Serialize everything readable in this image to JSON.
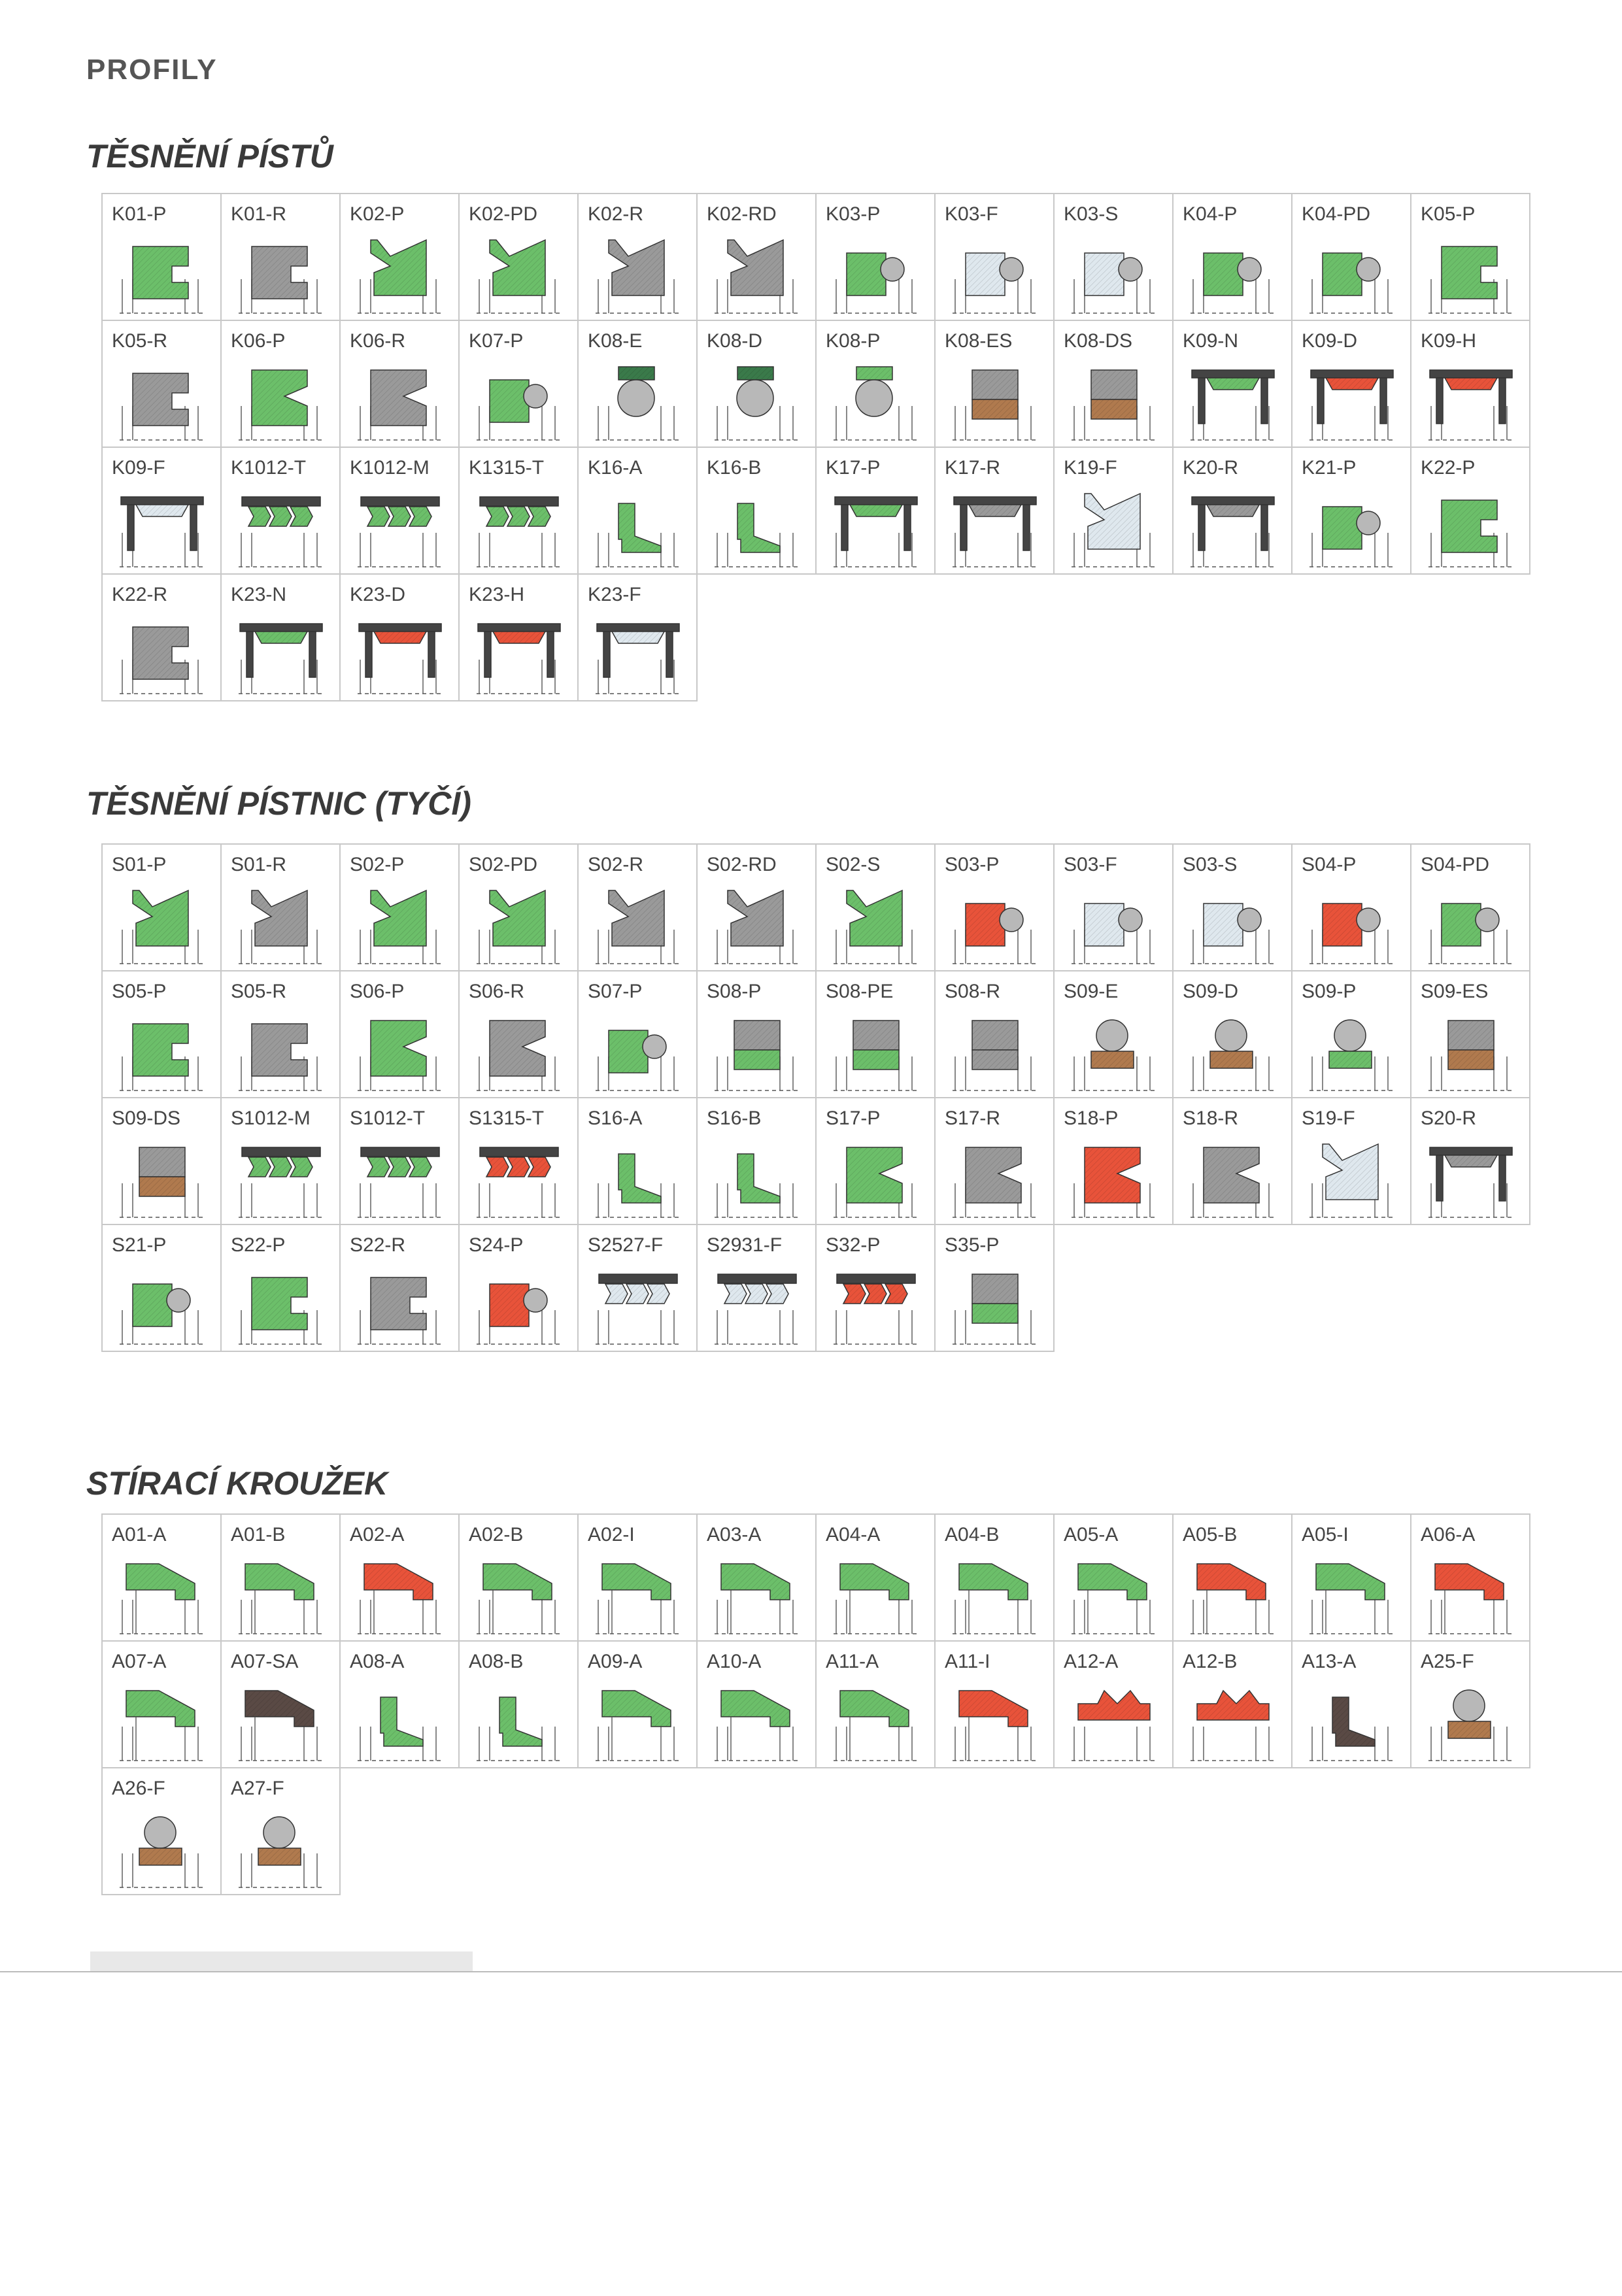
{
  "page": {
    "title": "PROFILY"
  },
  "colors": {
    "green": "#6cbf6a",
    "grey": "#9a9a9a",
    "red": "#e8533a",
    "brown": "#b07a4e",
    "dark": "#2a2a2a",
    "light": "#dfe8ee",
    "darkgreen": "#3a7a4a",
    "darkbrown": "#5a4a45"
  },
  "sections": [
    {
      "title": "TĚSNĚNÍ PÍSTŮ",
      "rows": [
        [
          {
            "code": "K01-P",
            "color": "green",
            "shape": "c"
          },
          {
            "code": "K01-R",
            "color": "grey",
            "shape": "c"
          },
          {
            "code": "K02-P",
            "color": "green",
            "shape": "lip"
          },
          {
            "code": "K02-PD",
            "color": "green",
            "shape": "lip"
          },
          {
            "code": "K02-R",
            "color": "grey",
            "shape": "lip"
          },
          {
            "code": "K02-RD",
            "color": "grey",
            "shape": "lip"
          },
          {
            "code": "K03-P",
            "color": "green",
            "shape": "oring"
          },
          {
            "code": "K03-F",
            "color": "light",
            "shape": "oring"
          },
          {
            "code": "K03-S",
            "color": "light",
            "shape": "oring"
          },
          {
            "code": "K04-P",
            "color": "green",
            "shape": "oring"
          },
          {
            "code": "K04-PD",
            "color": "green",
            "shape": "oring"
          },
          {
            "code": "K05-P",
            "color": "green",
            "shape": "c"
          }
        ],
        [
          {
            "code": "K05-R",
            "color": "grey",
            "shape": "c"
          },
          {
            "code": "K06-P",
            "color": "green",
            "shape": "v"
          },
          {
            "code": "K06-R",
            "color": "grey",
            "shape": "v"
          },
          {
            "code": "K07-P",
            "color": "green",
            "shape": "oring"
          },
          {
            "code": "K08-E",
            "color": "darkgreen",
            "shape": "ringcap"
          },
          {
            "code": "K08-D",
            "color": "darkgreen",
            "shape": "ringcap"
          },
          {
            "code": "K08-P",
            "color": "green",
            "shape": "ringcap"
          },
          {
            "code": "K08-ES",
            "color": "brown",
            "shape": "block"
          },
          {
            "code": "K08-DS",
            "color": "brown",
            "shape": "block"
          },
          {
            "code": "K09-N",
            "color": "green",
            "shape": "comp"
          },
          {
            "code": "K09-D",
            "color": "red",
            "shape": "comp"
          },
          {
            "code": "K09-H",
            "color": "red",
            "shape": "comp"
          }
        ],
        [
          {
            "code": "K09-F",
            "color": "light",
            "shape": "comp"
          },
          {
            "code": "K1012-T",
            "color": "green",
            "shape": "chev"
          },
          {
            "code": "K1012-M",
            "color": "green",
            "shape": "chev"
          },
          {
            "code": "K1315-T",
            "color": "green",
            "shape": "chev"
          },
          {
            "code": "K16-A",
            "color": "green",
            "shape": "thin"
          },
          {
            "code": "K16-B",
            "color": "green",
            "shape": "thin"
          },
          {
            "code": "K17-P",
            "color": "green",
            "shape": "comp"
          },
          {
            "code": "K17-R",
            "color": "grey",
            "shape": "comp"
          },
          {
            "code": "K19-F",
            "color": "light",
            "shape": "lip"
          },
          {
            "code": "K20-R",
            "color": "grey",
            "shape": "comp"
          },
          {
            "code": "K21-P",
            "color": "green",
            "shape": "oring"
          },
          {
            "code": "K22-P",
            "color": "green",
            "shape": "c"
          }
        ],
        [
          {
            "code": "K22-R",
            "color": "grey",
            "shape": "c"
          },
          {
            "code": "K23-N",
            "color": "green",
            "shape": "comp"
          },
          {
            "code": "K23-D",
            "color": "red",
            "shape": "comp"
          },
          {
            "code": "K23-H",
            "color": "red",
            "shape": "comp"
          },
          {
            "code": "K23-F",
            "color": "light",
            "shape": "comp"
          }
        ]
      ]
    },
    {
      "title": "TĚSNĚNÍ PÍSTNIC (TYČÍ)",
      "rows": [
        [
          {
            "code": "S01-P",
            "color": "green",
            "shape": "lip"
          },
          {
            "code": "S01-R",
            "color": "grey",
            "shape": "lip"
          },
          {
            "code": "S02-P",
            "color": "green",
            "shape": "lip"
          },
          {
            "code": "S02-PD",
            "color": "green",
            "shape": "lip"
          },
          {
            "code": "S02-R",
            "color": "grey",
            "shape": "lip"
          },
          {
            "code": "S02-RD",
            "color": "grey",
            "shape": "lip"
          },
          {
            "code": "S02-S",
            "color": "green",
            "shape": "lip"
          },
          {
            "code": "S03-P",
            "color": "red",
            "shape": "oring"
          },
          {
            "code": "S03-F",
            "color": "light",
            "shape": "oring"
          },
          {
            "code": "S03-S",
            "color": "light",
            "shape": "oring"
          },
          {
            "code": "S04-P",
            "color": "red",
            "shape": "oring"
          },
          {
            "code": "S04-PD",
            "color": "green",
            "shape": "oring"
          }
        ],
        [
          {
            "code": "S05-P",
            "color": "green",
            "shape": "c"
          },
          {
            "code": "S05-R",
            "color": "grey",
            "shape": "c"
          },
          {
            "code": "S06-P",
            "color": "green",
            "shape": "v"
          },
          {
            "code": "S06-R",
            "color": "grey",
            "shape": "v"
          },
          {
            "code": "S07-P",
            "color": "green",
            "shape": "oring"
          },
          {
            "code": "S08-P",
            "color": "green",
            "shape": "block"
          },
          {
            "code": "S08-PE",
            "color": "green",
            "shape": "block"
          },
          {
            "code": "S08-R",
            "color": "grey",
            "shape": "block"
          },
          {
            "code": "S09-E",
            "color": "brown",
            "shape": "ringbase"
          },
          {
            "code": "S09-D",
            "color": "brown",
            "shape": "ringbase"
          },
          {
            "code": "S09-P",
            "color": "green",
            "shape": "ringbase"
          },
          {
            "code": "S09-ES",
            "color": "brown",
            "shape": "block"
          }
        ],
        [
          {
            "code": "S09-DS",
            "color": "brown",
            "shape": "block"
          },
          {
            "code": "S1012-M",
            "color": "green",
            "shape": "chev"
          },
          {
            "code": "S1012-T",
            "color": "green",
            "shape": "chev"
          },
          {
            "code": "S1315-T",
            "color": "red",
            "shape": "chev"
          },
          {
            "code": "S16-A",
            "color": "green",
            "shape": "thin"
          },
          {
            "code": "S16-B",
            "color": "green",
            "shape": "thin"
          },
          {
            "code": "S17-P",
            "color": "green",
            "shape": "v"
          },
          {
            "code": "S17-R",
            "color": "grey",
            "shape": "v"
          },
          {
            "code": "S18-P",
            "color": "red",
            "shape": "v"
          },
          {
            "code": "S18-R",
            "color": "grey",
            "shape": "v"
          },
          {
            "code": "S19-F",
            "color": "light",
            "shape": "lip"
          },
          {
            "code": "S20-R",
            "color": "grey",
            "shape": "comp"
          }
        ],
        [
          {
            "code": "S21-P",
            "color": "green",
            "shape": "oring"
          },
          {
            "code": "S22-P",
            "color": "green",
            "shape": "c"
          },
          {
            "code": "S22-R",
            "color": "grey",
            "shape": "c"
          },
          {
            "code": "S24-P",
            "color": "red",
            "shape": "oring"
          },
          {
            "code": "S2527-F",
            "color": "light",
            "shape": "chev"
          },
          {
            "code": "S2931-F",
            "color": "light",
            "shape": "chev"
          },
          {
            "code": "S32-P",
            "color": "red",
            "shape": "chev"
          },
          {
            "code": "S35-P",
            "color": "green",
            "shape": "block"
          }
        ]
      ]
    },
    {
      "title": "STÍRACÍ KROUŽEK",
      "rows": [
        [
          {
            "code": "A01-A",
            "color": "green",
            "shape": "wiper"
          },
          {
            "code": "A01-B",
            "color": "green",
            "shape": "wiper"
          },
          {
            "code": "A02-A",
            "color": "red",
            "shape": "wiper"
          },
          {
            "code": "A02-B",
            "color": "green",
            "shape": "wiper"
          },
          {
            "code": "A02-I",
            "color": "green",
            "shape": "wiper"
          },
          {
            "code": "A03-A",
            "color": "green",
            "shape": "wiper"
          },
          {
            "code": "A04-A",
            "color": "green",
            "shape": "wiper"
          },
          {
            "code": "A04-B",
            "color": "green",
            "shape": "wiper"
          },
          {
            "code": "A05-A",
            "color": "green",
            "shape": "wiper"
          },
          {
            "code": "A05-B",
            "color": "red",
            "shape": "wiper"
          },
          {
            "code": "A05-I",
            "color": "green",
            "shape": "wiper"
          },
          {
            "code": "A06-A",
            "color": "red",
            "shape": "wiper"
          }
        ],
        [
          {
            "code": "A07-A",
            "color": "green",
            "shape": "wiper"
          },
          {
            "code": "A07-SA",
            "color": "darkbrown",
            "shape": "wiper"
          },
          {
            "code": "A08-A",
            "color": "green",
            "shape": "thin"
          },
          {
            "code": "A08-B",
            "color": "green",
            "shape": "thin"
          },
          {
            "code": "A09-A",
            "color": "green",
            "shape": "wiper"
          },
          {
            "code": "A10-A",
            "color": "green",
            "shape": "wiper"
          },
          {
            "code": "A11-A",
            "color": "green",
            "shape": "wiper"
          },
          {
            "code": "A11-I",
            "color": "red",
            "shape": "wiper"
          },
          {
            "code": "A12-A",
            "color": "red",
            "shape": "double"
          },
          {
            "code": "A12-B",
            "color": "red",
            "shape": "double"
          },
          {
            "code": "A13-A",
            "color": "darkbrown",
            "shape": "thin"
          },
          {
            "code": "A25-F",
            "color": "brown",
            "shape": "ringbase"
          }
        ],
        [
          {
            "code": "A26-F",
            "color": "brown",
            "shape": "ringbase"
          },
          {
            "code": "A27-F",
            "color": "brown",
            "shape": "ringbase"
          }
        ]
      ]
    }
  ]
}
